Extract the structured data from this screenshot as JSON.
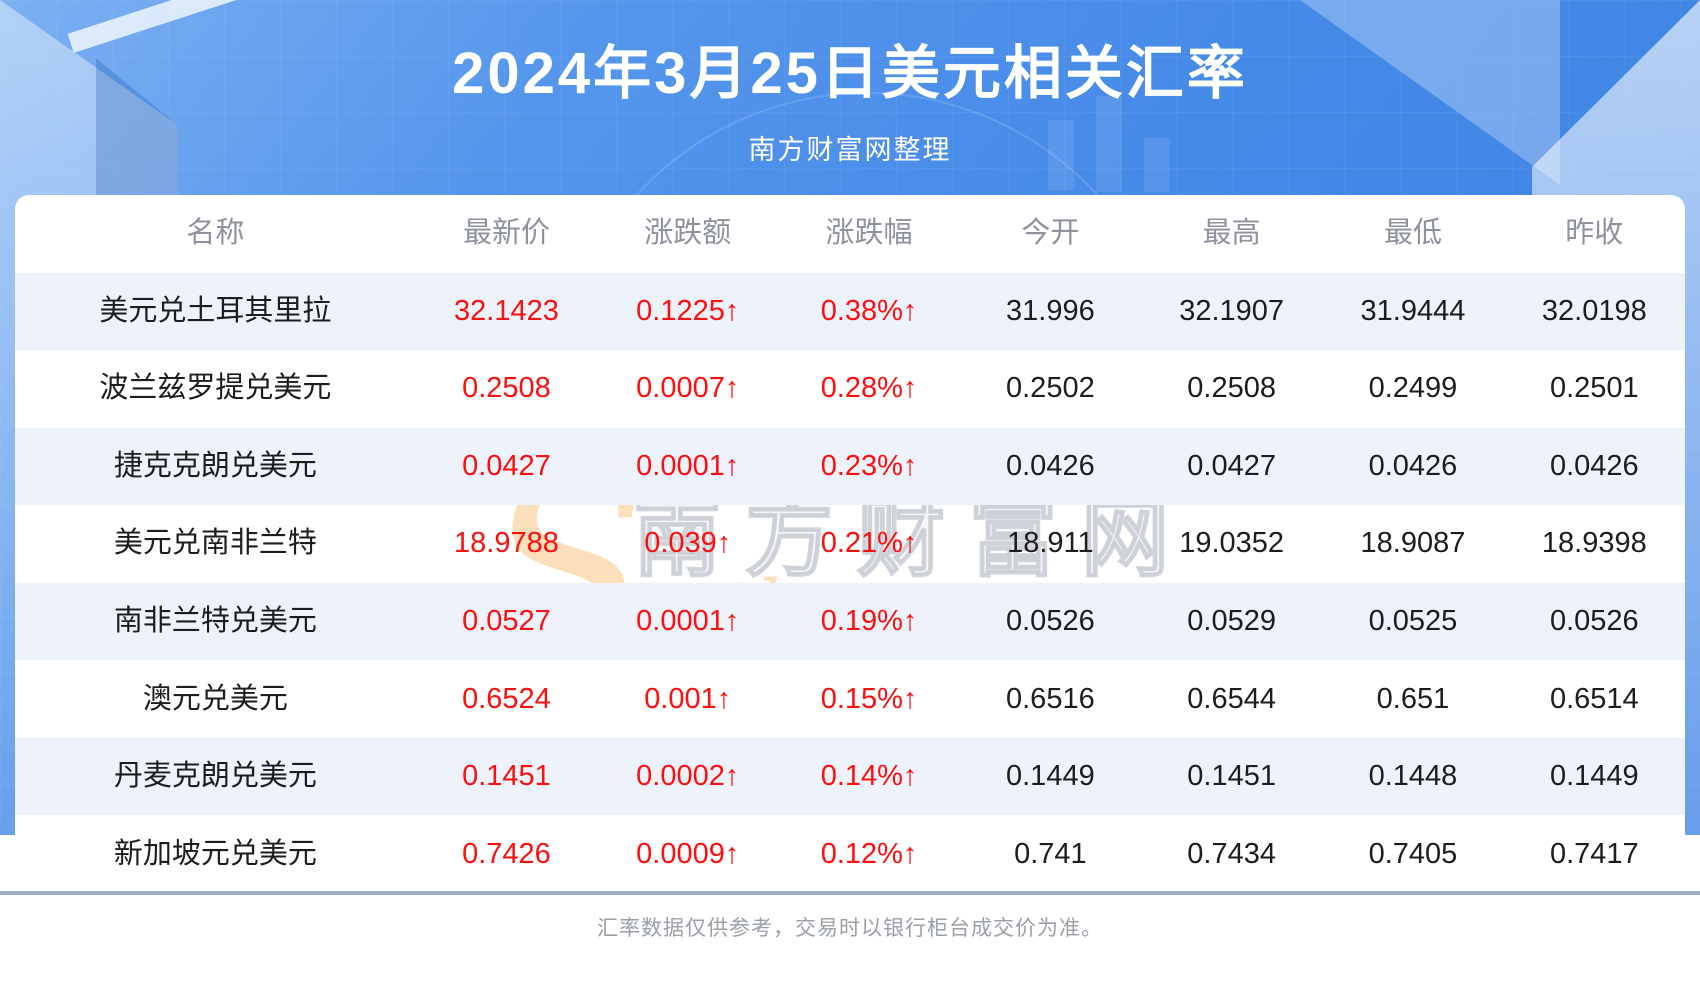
{
  "page": {
    "title": "2024年3月25日美元相关汇率",
    "subtitle": "南方财富网整理",
    "disclaimer": "汇率数据仅供参考，交易时以银行柜台成交价为准。"
  },
  "watermark": {
    "initial": "S",
    "script": "outhmoney.com",
    "cn": "南方财富网"
  },
  "colors": {
    "banner_blue": "#468ae8",
    "accent_red": "#fe0f0f",
    "stripe_blue": "#eef3fb",
    "header_gray": "#8d929c",
    "divider_gray_blue": "#9db0c7"
  },
  "chart_data": {
    "type": "table",
    "title": "2024年3月25日美元相关汇率",
    "headers": [
      "名称",
      "最新价",
      "涨跌额",
      "涨跌幅",
      "今开",
      "最高",
      "最低",
      "昨收"
    ],
    "rows": [
      {
        "name": "美元兑土耳其里拉",
        "latest": "32.1423",
        "change": "0.1225↑",
        "pct": "0.38%↑",
        "open": "31.996",
        "high": "32.1907",
        "low": "31.9444",
        "prev": "32.0198"
      },
      {
        "name": "波兰兹罗提兑美元",
        "latest": "0.2508",
        "change": "0.0007↑",
        "pct": "0.28%↑",
        "open": "0.2502",
        "high": "0.2508",
        "low": "0.2499",
        "prev": "0.2501"
      },
      {
        "name": "捷克克朗兑美元",
        "latest": "0.0427",
        "change": "0.0001↑",
        "pct": "0.23%↑",
        "open": "0.0426",
        "high": "0.0427",
        "low": "0.0426",
        "prev": "0.0426"
      },
      {
        "name": "美元兑南非兰特",
        "latest": "18.9788",
        "change": "0.039↑",
        "pct": "0.21%↑",
        "open": "18.911",
        "high": "19.0352",
        "low": "18.9087",
        "prev": "18.9398"
      },
      {
        "name": "南非兰特兑美元",
        "latest": "0.0527",
        "change": "0.0001↑",
        "pct": "0.19%↑",
        "open": "0.0526",
        "high": "0.0529",
        "low": "0.0525",
        "prev": "0.0526"
      },
      {
        "name": "澳元兑美元",
        "latest": "0.6524",
        "change": "0.001↑",
        "pct": "0.15%↑",
        "open": "0.6516",
        "high": "0.6544",
        "low": "0.651",
        "prev": "0.6514"
      },
      {
        "name": "丹麦克朗兑美元",
        "latest": "0.1451",
        "change": "0.0002↑",
        "pct": "0.14%↑",
        "open": "0.1449",
        "high": "0.1451",
        "low": "0.1448",
        "prev": "0.1449"
      },
      {
        "name": "新加坡元兑美元",
        "latest": "0.7426",
        "change": "0.0009↑",
        "pct": "0.12%↑",
        "open": "0.741",
        "high": "0.7434",
        "low": "0.7405",
        "prev": "0.7417"
      }
    ]
  }
}
